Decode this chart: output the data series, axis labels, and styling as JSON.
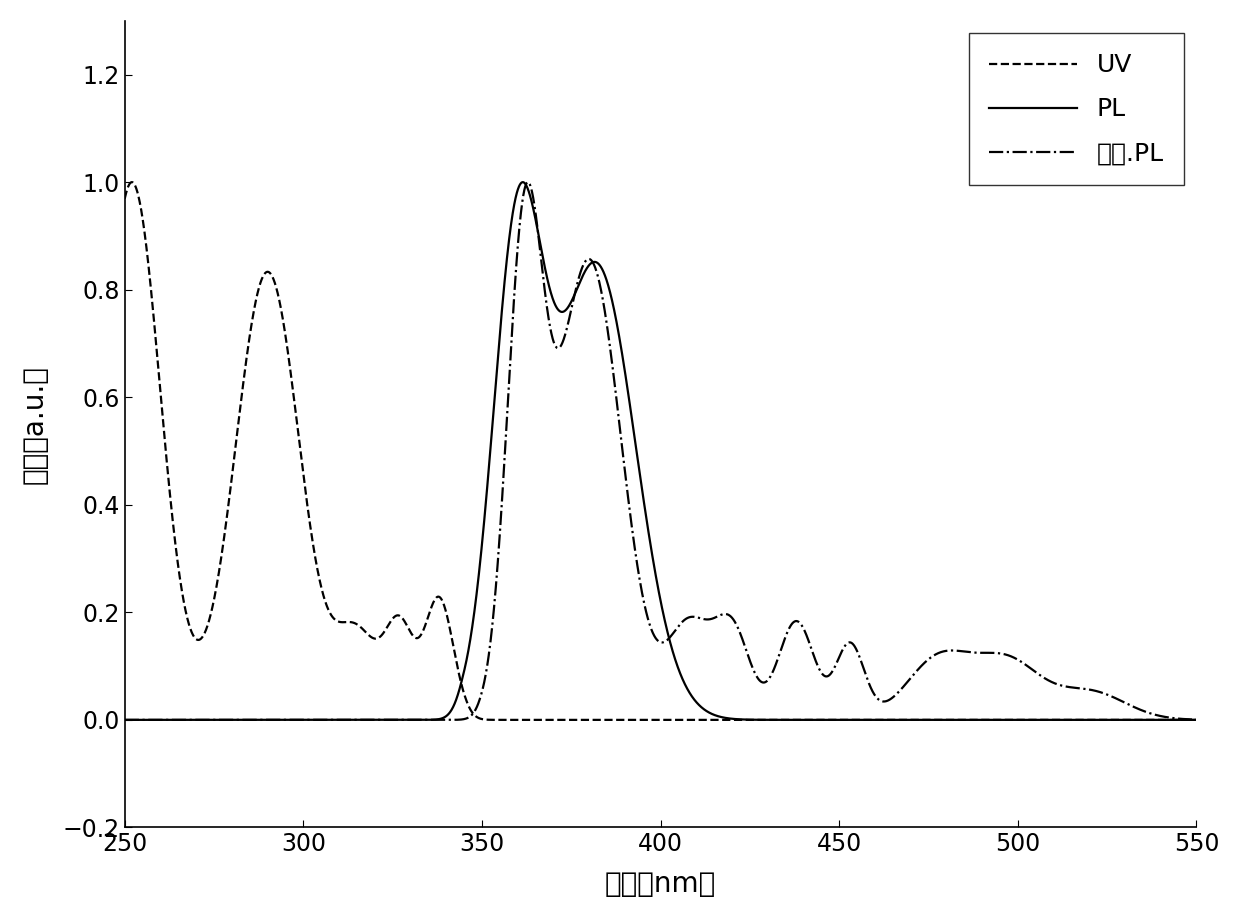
{
  "xlabel": "波长（nm）",
  "ylabel": "强度（a.u.）",
  "xlim": [
    250,
    550
  ],
  "ylim": [
    -0.2,
    1.3
  ],
  "xticks": [
    250,
    300,
    350,
    400,
    450,
    500,
    550
  ],
  "yticks": [
    -0.2,
    0.0,
    0.2,
    0.4,
    0.6,
    0.8,
    1.0,
    1.2
  ],
  "legend_labels": [
    "UV",
    "PL",
    "低温.PL"
  ],
  "background_color": "white",
  "font_size_axis": 20,
  "font_size_legend": 18,
  "font_size_ticks": 17
}
